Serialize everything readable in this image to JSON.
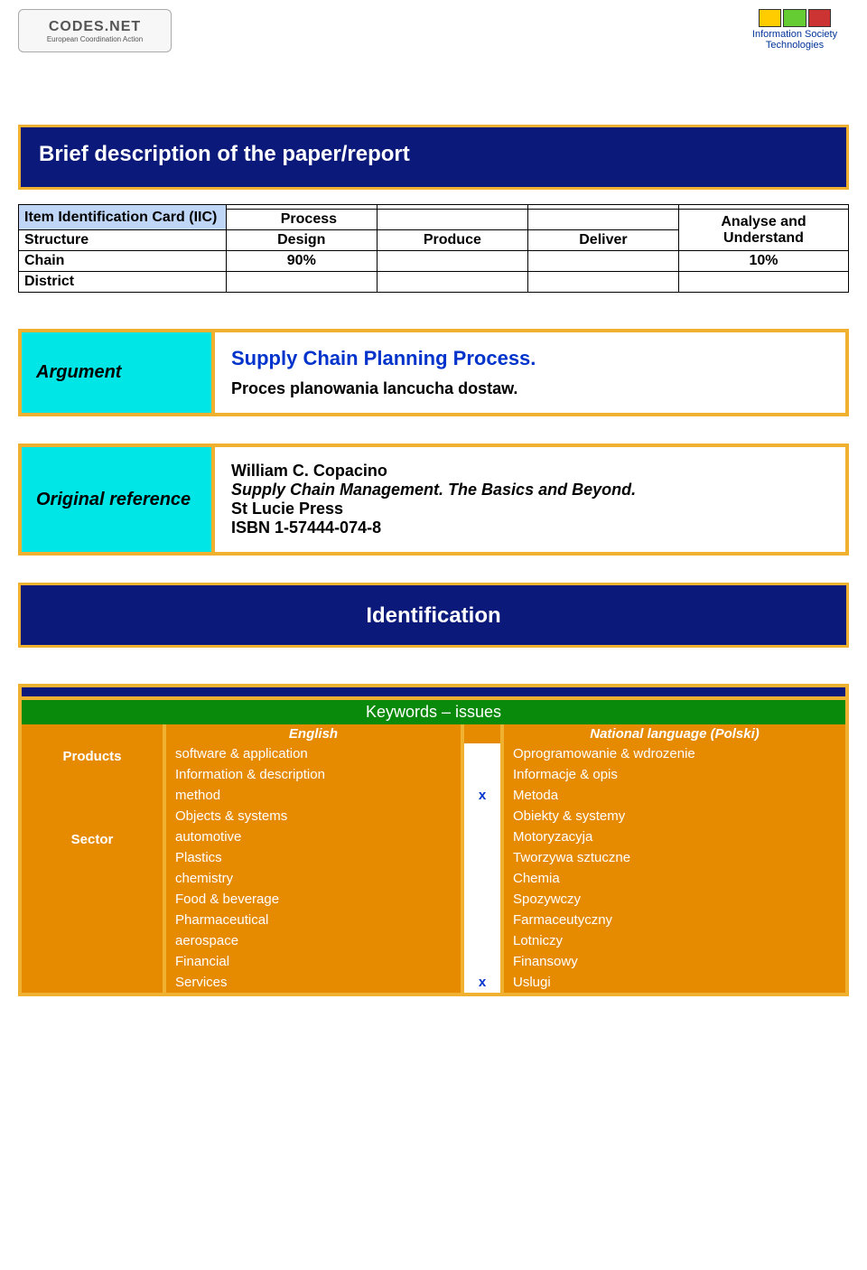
{
  "logos": {
    "left_top": "CODES.NET",
    "left_sub": "European Coordination Action",
    "right_caption_1": "Information Society",
    "right_caption_2": "Technologies"
  },
  "banner1": {
    "title": "Brief description of the paper/report"
  },
  "iic": {
    "header": "Item Identification Card (IIC)",
    "row_labels": {
      "structure": "Structure",
      "chain": "Chain",
      "district": "District"
    },
    "process_label": "Process",
    "columns": {
      "design": "Design",
      "produce": "Produce",
      "deliver": "Deliver",
      "analyse": "Analyse and Understand"
    },
    "chain": {
      "design": "90%",
      "produce": "",
      "deliver": "",
      "analyse": "10%"
    },
    "district": {
      "design": "",
      "produce": "",
      "deliver": "",
      "analyse": ""
    }
  },
  "argument": {
    "label": "Argument",
    "title": "Supply Chain Planning Process.",
    "subtitle": "Proces planowania lancucha dostaw."
  },
  "reference": {
    "label": "Original reference",
    "author": "William C. Copacino",
    "work": "Supply Chain Management. The Basics and Beyond.",
    "publisher": "St Lucie Press",
    "isbn": "ISBN 1-57444-074-8"
  },
  "banner2": {
    "title": "Identification"
  },
  "keywords": {
    "header": "Keywords – issues",
    "col_en": "English",
    "col_nat": "National  language (Polski)",
    "cat_products": "Products",
    "cat_sector": "Sector",
    "rows": [
      {
        "cat": "products",
        "en": "software & application",
        "mark": "",
        "nat": "Oprogramowanie & wdrozenie"
      },
      {
        "cat": "products",
        "en": "Information & description",
        "mark": "",
        "nat": "Informacje & opis"
      },
      {
        "cat": "products",
        "en": "method",
        "mark": "x",
        "nat": "Metoda"
      },
      {
        "cat": "products",
        "en": "Objects & systems",
        "mark": "",
        "nat": "Obiekty & systemy"
      },
      {
        "cat": "sector",
        "en": "automotive",
        "mark": "",
        "nat": "Motoryzacyja"
      },
      {
        "cat": "sector",
        "en": "Plastics",
        "mark": "",
        "nat": "Tworzywa sztuczne"
      },
      {
        "cat": "sector",
        "en": "chemistry",
        "mark": "",
        "nat": "Chemia"
      },
      {
        "cat": "sector",
        "en": "Food & beverage",
        "mark": "",
        "nat": "Spozywczy"
      },
      {
        "cat": "sector",
        "en": "Pharmaceutical",
        "mark": "",
        "nat": "Farmaceutyczny"
      },
      {
        "cat": "sector",
        "en": "aerospace",
        "mark": "",
        "nat": "Lotniczy"
      },
      {
        "cat": "sector",
        "en": "Financial",
        "mark": "",
        "nat": "Finansowy"
      },
      {
        "cat": "sector",
        "en": "Services",
        "mark": "x",
        "nat": "Uslugi"
      }
    ]
  }
}
